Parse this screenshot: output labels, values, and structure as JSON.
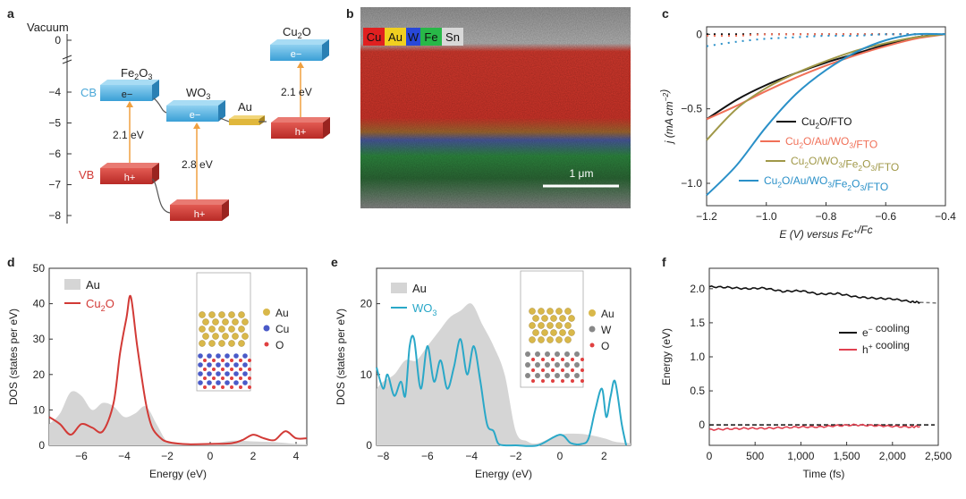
{
  "colors": {
    "red": "#d23a36",
    "blue": "#3a9fd6",
    "yellow": "#e0b73c",
    "orange": "#f0a040",
    "black": "#111111",
    "salmon": "#f07058",
    "olive": "#a09848",
    "teal": "#2a90c8",
    "cyan": "#2aa8c8",
    "gray": "#d5d5d5"
  },
  "panel_a": {
    "letter": "a",
    "vacuum_label": "Vacuum",
    "ticks": [
      "0",
      "−4",
      "−5",
      "−6",
      "−7",
      "−8"
    ],
    "materials": [
      "Fe2O3",
      "WO3",
      "Au",
      "Cu2O"
    ],
    "cb_label": "CB",
    "vb_label": "VB",
    "electron": "e−",
    "hole": "h+",
    "gap_fe2o3": "2.1 eV",
    "gap_wo3": "2.8 eV",
    "gap_cu2o": "2.1 eV"
  },
  "panel_b": {
    "letter": "b",
    "elements": [
      {
        "name": "Cu",
        "color": "#e02020"
      },
      {
        "name": "Au",
        "color": "#f0d020"
      },
      {
        "name": "W",
        "color": "#2848d8"
      },
      {
        "name": "Fe",
        "color": "#28b848"
      },
      {
        "name": "Sn",
        "color": "#d8d8d8"
      }
    ],
    "scale_label": "1 μm"
  },
  "panel_c": {
    "letter": "c",
    "chart_data": {
      "type": "line",
      "xlabel": "E (V) versus Fc+/Fc",
      "ylabel": "j (mA cm−2)",
      "xlim": [
        -1.2,
        -0.4
      ],
      "ylim": [
        -1.15,
        0.05
      ],
      "xticks": [
        "−1.2",
        "−1.0",
        "−0.8",
        "−0.6",
        "−0.4"
      ],
      "yticks": [
        "0",
        "−0.5",
        "−1.0"
      ],
      "series": [
        {
          "name": "Cu2O/FTO",
          "color": "#111111",
          "x": [
            -1.2,
            -1.1,
            -1.0,
            -0.9,
            -0.8,
            -0.7,
            -0.6,
            -0.5,
            -0.4
          ],
          "y": [
            -0.57,
            -0.44,
            -0.34,
            -0.26,
            -0.19,
            -0.13,
            -0.07,
            -0.02,
            0.0
          ]
        },
        {
          "name": "Cu2O/Au/WO3/FTO",
          "color": "#f07058",
          "x": [
            -1.2,
            -1.1,
            -1.0,
            -0.9,
            -0.8,
            -0.7,
            -0.6,
            -0.5,
            -0.4
          ],
          "y": [
            -0.57,
            -0.48,
            -0.38,
            -0.29,
            -0.21,
            -0.14,
            -0.08,
            -0.03,
            0.0
          ]
        },
        {
          "name": "Cu2O/WO3/Fe2O3/FTO",
          "color": "#a09848",
          "x": [
            -1.2,
            -1.1,
            -1.0,
            -0.9,
            -0.8,
            -0.7,
            -0.6,
            -0.5,
            -0.4
          ],
          "y": [
            -0.71,
            -0.5,
            -0.36,
            -0.26,
            -0.18,
            -0.11,
            -0.06,
            -0.02,
            0.0
          ]
        },
        {
          "name": "Cu2O/Au/WO3/Fe2O3/FTO",
          "color": "#2a90c8",
          "x": [
            -1.2,
            -1.1,
            -1.0,
            -0.9,
            -0.8,
            -0.7,
            -0.6,
            -0.5,
            -0.4
          ],
          "y": [
            -1.08,
            -0.88,
            -0.62,
            -0.4,
            -0.24,
            -0.12,
            -0.04,
            0.0,
            0.0
          ]
        }
      ],
      "dark": [
        {
          "color": "#111111",
          "y": [
            -0.0,
            -0.0,
            -0.0,
            -0.0,
            -0.0,
            -0.0,
            -0.0,
            -0.0,
            0.0
          ]
        },
        {
          "color": "#f07058",
          "y": [
            -0.01,
            -0.01,
            0.0,
            0.0,
            0.0,
            0.0,
            0.0,
            0.0,
            0.0
          ]
        },
        {
          "color": "#2a90c8",
          "y": [
            -0.08,
            -0.05,
            -0.03,
            -0.02,
            -0.01,
            -0.01,
            0.0,
            0.0,
            0.0
          ]
        }
      ]
    }
  },
  "panel_d": {
    "letter": "d",
    "chart_data": {
      "type": "area",
      "xlabel": "Energy (eV)",
      "ylabel": "DOS (states per eV)",
      "xlim": [
        -7.5,
        4.5
      ],
      "ylim": [
        0,
        50
      ],
      "xticks": [
        "−6",
        "−4",
        "−2",
        "0",
        "2",
        "4"
      ],
      "yticks": [
        "0",
        "10",
        "20",
        "30",
        "40",
        "50"
      ],
      "au": {
        "name": "Au",
        "x": [
          -7.5,
          -7,
          -6.5,
          -6,
          -5.5,
          -5,
          -4.5,
          -4,
          -3.5,
          -3,
          -2.5,
          -2,
          -1.5,
          -1,
          0,
          1,
          2,
          3,
          4,
          4.5
        ],
        "y": [
          6,
          9,
          15,
          14,
          10,
          12,
          11,
          8,
          9,
          11,
          6,
          1,
          0.6,
          0.5,
          0.4,
          1.3,
          1.1,
          0.9,
          0.4,
          0.3
        ]
      },
      "cu2o": {
        "name": "Cu2O",
        "x": [
          -7.5,
          -7,
          -6.5,
          -6,
          -5.5,
          -5,
          -4.5,
          -4.2,
          -3.9,
          -3.7,
          -3.4,
          -3,
          -2.7,
          -2.3,
          -2,
          -1.5,
          -1,
          0,
          1,
          1.5,
          2,
          2.5,
          3,
          3.5,
          4,
          4.5
        ],
        "y": [
          8,
          6,
          3,
          6,
          5,
          4,
          12,
          26,
          36,
          42,
          28,
          12,
          5,
          2,
          1,
          0.5,
          0.3,
          0.4,
          0.6,
          1.5,
          3,
          2,
          1.5,
          4,
          2,
          2
        ]
      },
      "legend": [
        "Au",
        "Cu2O"
      ],
      "inset_legend": [
        "Au",
        "Cu",
        "O"
      ]
    }
  },
  "panel_e": {
    "letter": "e",
    "chart_data": {
      "type": "area",
      "xlabel": "Energy (eV)",
      "ylabel": "DOS (states per eV)",
      "xlim": [
        -8.3,
        3.2
      ],
      "ylim": [
        0,
        25
      ],
      "xticks": [
        "−8",
        "−6",
        "−4",
        "−2",
        "0",
        "2"
      ],
      "yticks": [
        "0",
        "10",
        "20"
      ],
      "au": {
        "name": "Au",
        "x": [
          -8.3,
          -8,
          -7.5,
          -7,
          -6.5,
          -6,
          -5.5,
          -5,
          -4.5,
          -4,
          -3.5,
          -3,
          -2.5,
          -2,
          -1.5,
          -1,
          0,
          1,
          2,
          2.5,
          3.2
        ],
        "y": [
          8,
          9,
          10,
          12,
          12,
          14,
          16,
          18,
          19,
          20,
          17,
          14,
          10,
          2,
          0.6,
          0.3,
          1.5,
          1.6,
          1,
          0.5,
          0.3
        ]
      },
      "wo3": {
        "name": "WO3",
        "x": [
          -8.3,
          -8,
          -7.8,
          -7.5,
          -7.2,
          -7,
          -6.8,
          -6.6,
          -6.3,
          -6,
          -5.7,
          -5.4,
          -5.1,
          -4.8,
          -4.5,
          -4.2,
          -3.9,
          -3.6,
          -3.3,
          -3,
          -2.8,
          -2.5,
          -2,
          -1,
          0,
          0.5,
          1,
          1.3,
          1.6,
          1.9,
          2.1,
          2.3,
          2.5,
          2.8,
          3.0
        ],
        "y": [
          11,
          8,
          10,
          7,
          9,
          7,
          14,
          15,
          8,
          14,
          9,
          12,
          8,
          11,
          15,
          10,
          14,
          9,
          3,
          2,
          0.3,
          0,
          0,
          0,
          1.5,
          0.3,
          0.2,
          1,
          5,
          8,
          4,
          7,
          9,
          3,
          0
        ]
      },
      "legend": [
        "Au",
        "WO3"
      ],
      "inset_legend": [
        "Au",
        "W",
        "O"
      ]
    }
  },
  "panel_f": {
    "letter": "f",
    "chart_data": {
      "type": "line",
      "xlabel": "Time (fs)",
      "ylabel": "Energy (eV)",
      "xlim": [
        0,
        2500
      ],
      "ylim": [
        -0.3,
        2.3
      ],
      "xticks": [
        "0",
        "500",
        "1,000",
        "1,500",
        "2,000",
        "2,500"
      ],
      "yticks": [
        "0",
        "0.5",
        "1.0",
        "1.5",
        "2.0"
      ],
      "series": [
        {
          "name": "e− cooling",
          "color": "#111111",
          "x": [
            0,
            200,
            400,
            600,
            800,
            1000,
            1200,
            1400,
            1600,
            1800,
            2000,
            2200,
            2300
          ],
          "y": [
            2.03,
            2.02,
            2.0,
            2.01,
            1.96,
            1.97,
            1.92,
            1.93,
            1.88,
            1.86,
            1.85,
            1.81,
            1.8
          ]
        },
        {
          "name": "h+ cooling",
          "color": "#e04050",
          "x": [
            0,
            200,
            400,
            600,
            800,
            1000,
            1200,
            1400,
            1600,
            1800,
            2000,
            2200,
            2300
          ],
          "y": [
            -0.07,
            -0.06,
            -0.05,
            -0.05,
            -0.04,
            -0.03,
            -0.03,
            -0.01,
            0.0,
            -0.01,
            -0.02,
            -0.03,
            -0.02
          ]
        }
      ],
      "legend": [
        "e− cooling",
        "h+ cooling"
      ]
    }
  }
}
